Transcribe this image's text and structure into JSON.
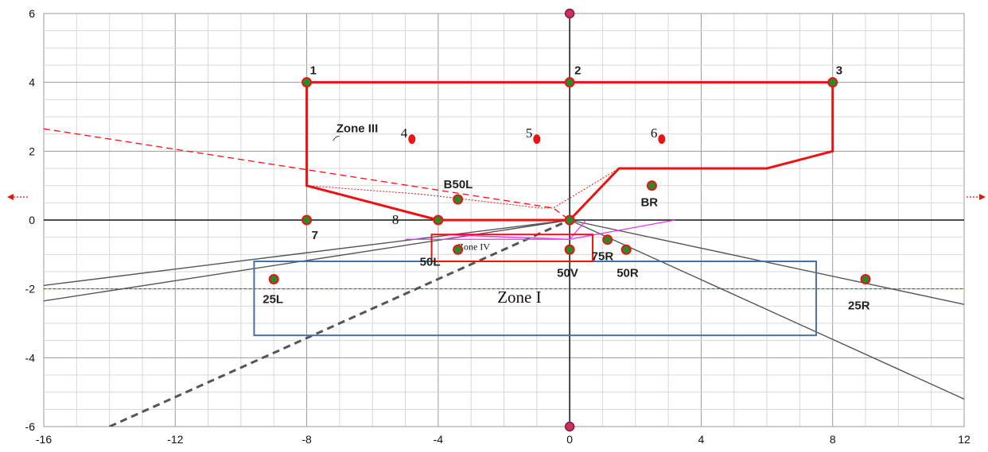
{
  "chart_data": {
    "type": "diagram",
    "xlim": [
      -16,
      12
    ],
    "ylim": [
      -6,
      6
    ],
    "x_ticks": [
      -16,
      -12,
      -8,
      -4,
      0,
      4,
      8,
      12
    ],
    "y_ticks": [
      6,
      4,
      2,
      0,
      -2,
      -4,
      -6
    ],
    "x_tick_labels": [
      "-16",
      "-12",
      "-8",
      "-4",
      "0",
      "4",
      "8",
      "12"
    ],
    "y_tick_labels": [
      "6",
      "4",
      "2",
      "0",
      "-2",
      "-4",
      "-6"
    ],
    "grid": true,
    "points": [
      {
        "label": "1",
        "x": -8,
        "y": 4
      },
      {
        "label": "2",
        "x": 0,
        "y": 4
      },
      {
        "label": "3",
        "x": 8,
        "y": 4
      },
      {
        "label": "B50L",
        "x": -3.4,
        "y": 0.6
      },
      {
        "label": "BR",
        "x": 2.5,
        "y": 1.0
      },
      {
        "label": "7",
        "x": -8,
        "y": 0
      },
      {
        "label": "50L",
        "x": -3.4,
        "y": -0.86
      },
      {
        "label": "50V",
        "x": 0,
        "y": -0.86
      },
      {
        "label": "75R",
        "x": 1.15,
        "y": -0.57
      },
      {
        "label": "50R",
        "x": 1.72,
        "y": -0.86
      },
      {
        "label": "25L",
        "x": -9,
        "y": -1.72
      },
      {
        "label": "25R",
        "x": 9,
        "y": -1.72
      }
    ],
    "plain_points": [
      {
        "x": -4,
        "y": 0
      },
      {
        "x": 0,
        "y": 0
      }
    ],
    "red_markers": [
      {
        "label": "4",
        "x": -4.8,
        "y": 2.35
      },
      {
        "label": "5",
        "x": -1,
        "y": 2.35
      },
      {
        "label": "6",
        "x": 2.8,
        "y": 2.35
      }
    ],
    "axis_markers": [
      {
        "x": 0,
        "y": 6
      },
      {
        "x": 0,
        "y": -6
      }
    ],
    "label_8": "8",
    "zone_labels": {
      "zone3": "Zone III",
      "zone4": "Zone IV",
      "zone1": "Zone I"
    },
    "zone1_box": {
      "x1": -9.6,
      "y1": -1.2,
      "x2": 7.5,
      "y2": -3.35
    },
    "zone4_box": {
      "x1": -4.2,
      "y1": -0.42,
      "x2": 0.7,
      "y2": -1.2
    },
    "colors": {
      "red": "#ee1111",
      "blue": "#4a6fa5",
      "gray": "#555555",
      "magenta": "#ee33ee",
      "cutoff_blue": "#3a3aee",
      "point_fill": "#2a8a2a",
      "grid_major": "#9a9a9a",
      "grid_minor": "#d8d8d8"
    }
  }
}
